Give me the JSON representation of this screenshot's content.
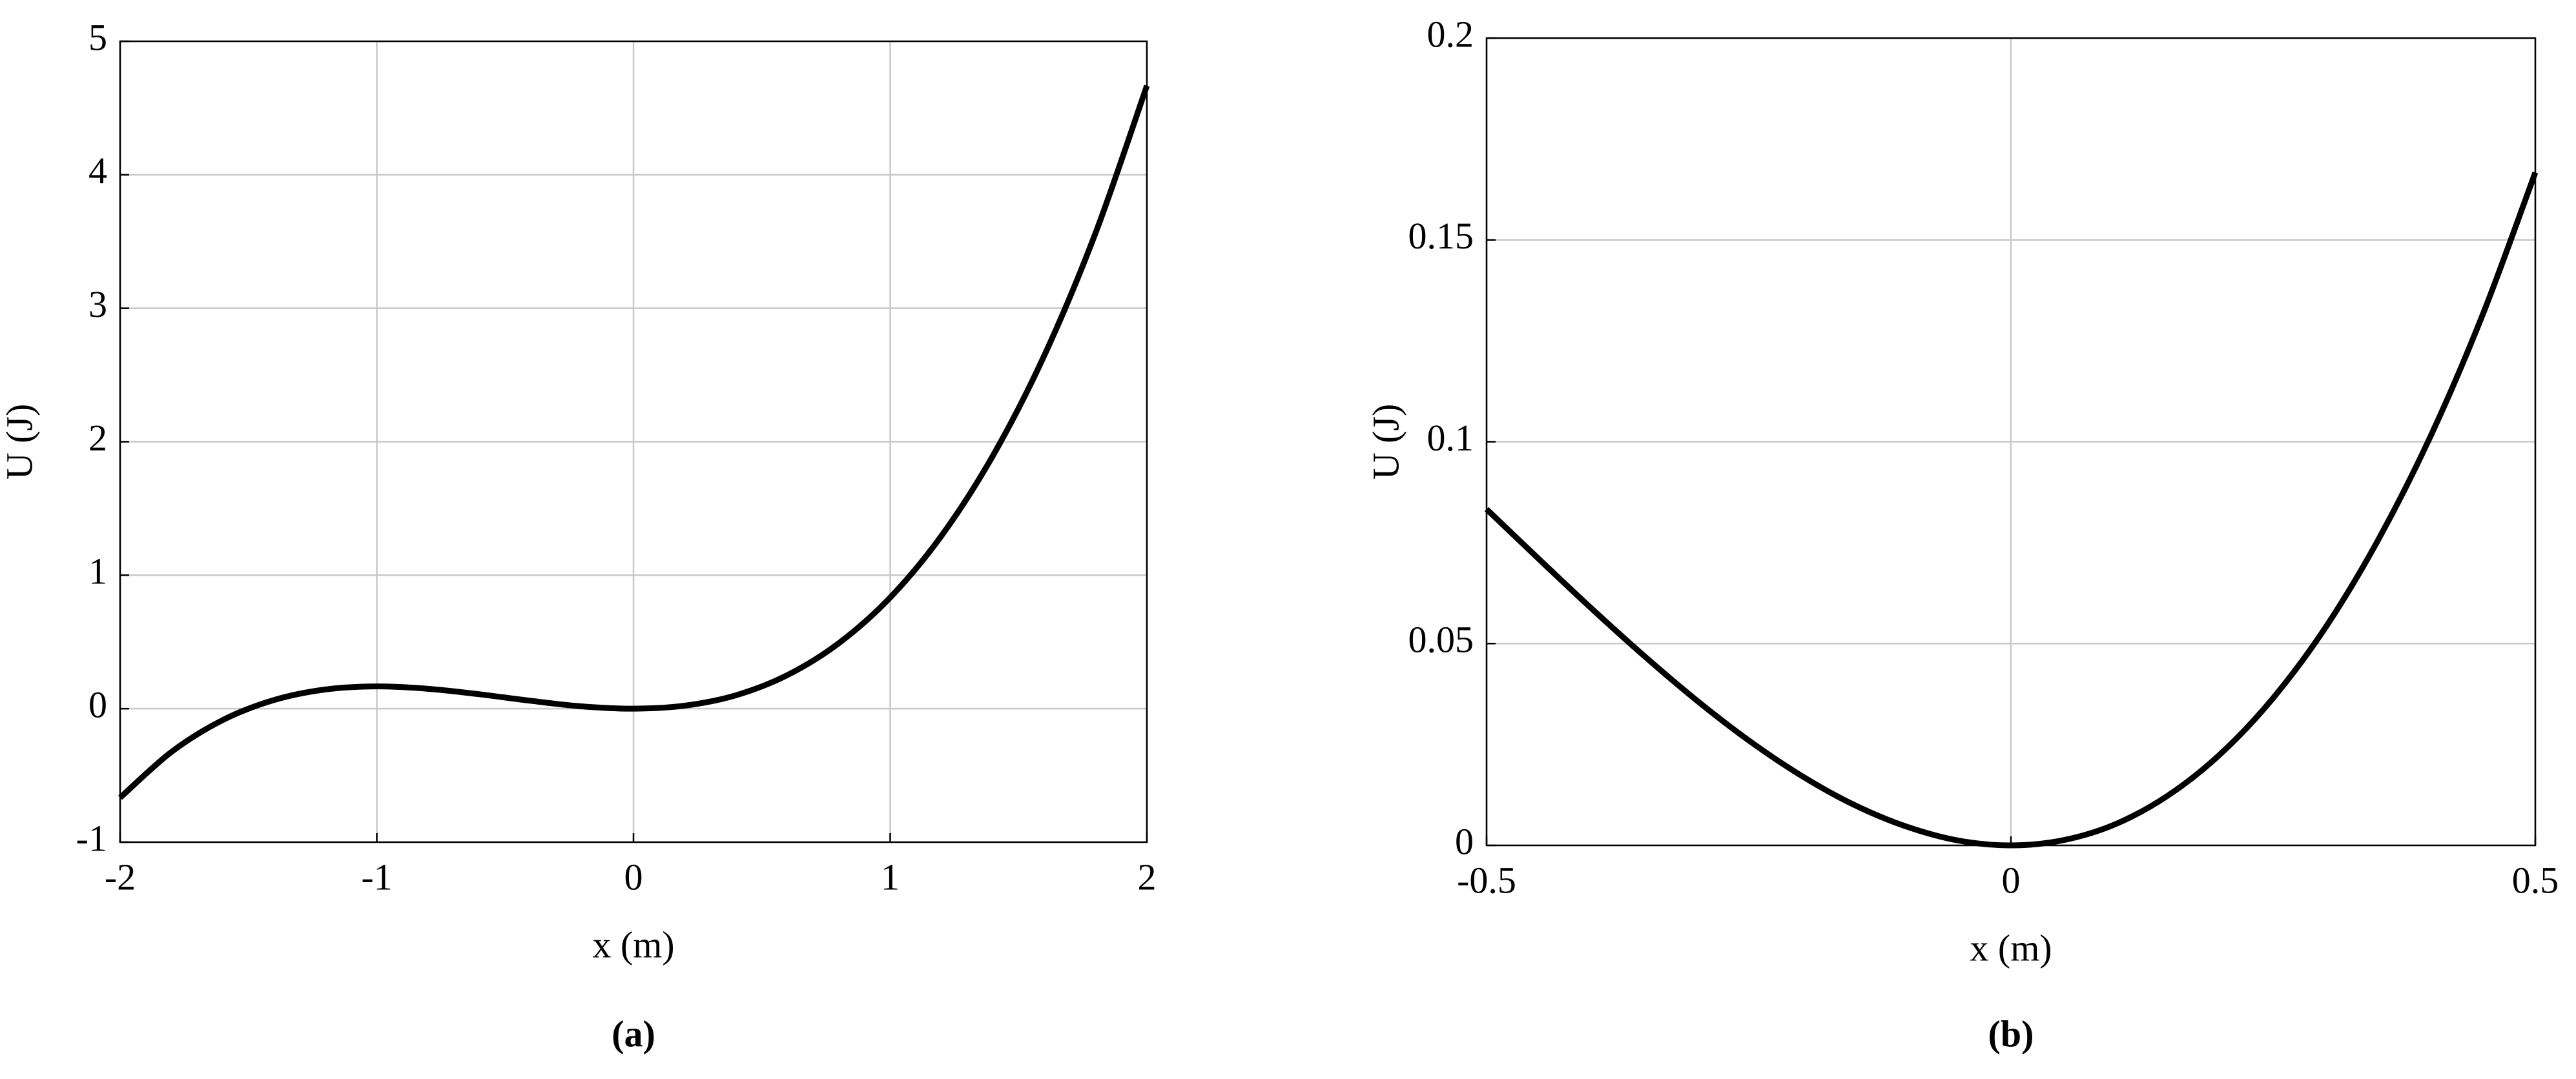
{
  "chart_data": [
    {
      "type": "line",
      "caption": "(a)",
      "xlabel": "x (m)",
      "ylabel": "U (J)",
      "grid": true,
      "color": "#000000",
      "x": [
        -2,
        -1.8,
        -1.6,
        -1.4,
        -1.2,
        -1,
        -0.8,
        -0.6,
        -0.4,
        -0.2,
        0,
        0.2,
        0.4,
        0.6,
        0.8,
        1,
        1.2,
        1.4,
        1.6,
        1.8,
        2
      ],
      "values": [
        -0.667,
        -0.324,
        -0.085,
        0.065,
        0.144,
        0.167,
        0.149,
        0.108,
        0.059,
        0.017,
        0,
        0.023,
        0.101,
        0.252,
        0.491,
        0.833,
        1.296,
        1.895,
        2.645,
        3.564,
        4.667
      ],
      "xlim": [
        -2,
        2
      ],
      "ylim": [
        -1,
        5
      ],
      "xticks": [
        -2,
        -1,
        0,
        1,
        2
      ],
      "yticks": [
        -1,
        0,
        1,
        2,
        3,
        4,
        5
      ]
    },
    {
      "type": "line",
      "caption": "(b)",
      "xlabel": "x (m)",
      "ylabel": "U (J)",
      "grid": true,
      "color": "#000000",
      "x": [
        -0.5,
        -0.45,
        -0.4,
        -0.35,
        -0.3,
        -0.25,
        -0.2,
        -0.15,
        -0.1,
        -0.05,
        0,
        0.05,
        0.1,
        0.15,
        0.2,
        0.25,
        0.3,
        0.35,
        0.4,
        0.45,
        0.5
      ],
      "values": [
        0.0833,
        0.0709,
        0.0587,
        0.047,
        0.036,
        0.026,
        0.0173,
        0.0101,
        0.0047,
        0.0012,
        0,
        0.0013,
        0.0053,
        0.0124,
        0.0227,
        0.0365,
        0.054,
        0.0756,
        0.1013,
        0.1316,
        0.1667
      ],
      "xlim": [
        -0.5,
        0.5
      ],
      "ylim": [
        0,
        0.2
      ],
      "xticks": [
        -0.5,
        0,
        0.5
      ],
      "yticks": [
        0,
        0.05,
        0.1,
        0.15,
        0.2
      ]
    }
  ]
}
